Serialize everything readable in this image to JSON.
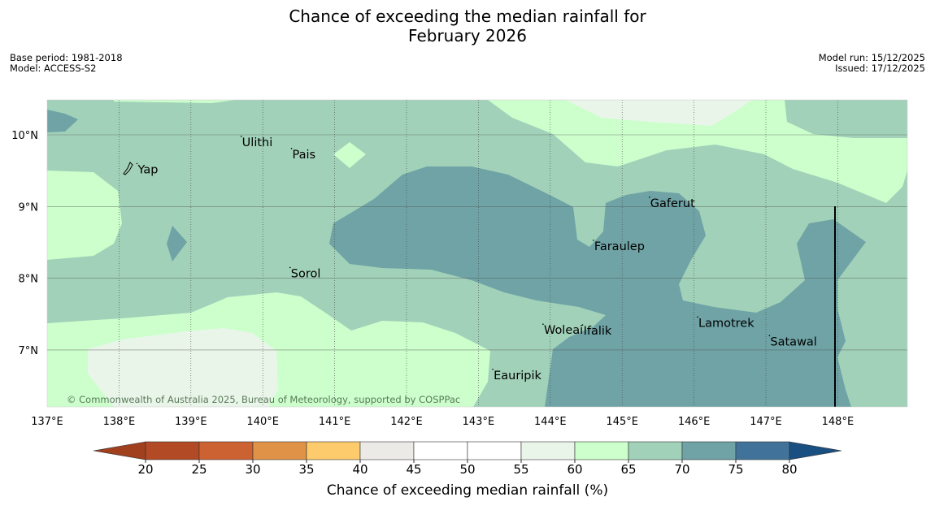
{
  "title": {
    "line1": "Chance of exceeding the median rainfall for",
    "line2": "February 2026"
  },
  "meta": {
    "base_period": "Base period: 1981-2018",
    "model": "Model: ACCESS-S2",
    "model_run": "Model run: 15/12/2025",
    "issued": "Issued: 17/12/2025"
  },
  "map": {
    "lon_ticks": [
      "137°E",
      "138°E",
      "139°E",
      "140°E",
      "141°E",
      "142°E",
      "143°E",
      "144°E",
      "145°E",
      "146°E",
      "147°E",
      "148°E"
    ],
    "lat_ticks": [
      "10°N",
      "9°N",
      "8°N",
      "7°N"
    ],
    "places": [
      {
        "name": "Yap",
        "lon": 138.25,
        "lat": 9.52
      },
      {
        "name": "Ulithi",
        "lon": 139.7,
        "lat": 9.9
      },
      {
        "name": "Pais",
        "lon": 140.4,
        "lat": 9.73
      },
      {
        "name": "Gaferut",
        "lon": 145.38,
        "lat": 9.05
      },
      {
        "name": "Faraulep",
        "lon": 144.6,
        "lat": 8.45
      },
      {
        "name": "Sorol",
        "lon": 140.38,
        "lat": 8.07
      },
      {
        "name": "Lamotrek",
        "lon": 146.05,
        "lat": 7.38
      },
      {
        "name": "Woleai",
        "lon": 143.9,
        "lat": 7.28
      },
      {
        "name": "Ifalik",
        "lon": 144.45,
        "lat": 7.27
      },
      {
        "name": "Satawal",
        "lon": 147.05,
        "lat": 7.12
      },
      {
        "name": "Eauripik",
        "lon": 143.2,
        "lat": 6.65
      }
    ],
    "copyright": "© Commonwealth of Australia 2025, Bureau of Meteorology, supported by COSPPac"
  },
  "colorbar": {
    "ticks": [
      "20",
      "25",
      "30",
      "35",
      "40",
      "45",
      "50",
      "55",
      "60",
      "65",
      "70",
      "75",
      "80"
    ],
    "colors": [
      "#a0401f",
      "#b24a25",
      "#cc6131",
      "#e09346",
      "#fdcb6b",
      "#ebeae6",
      "#ffffff",
      "#ffffff",
      "#eaf5ea",
      "#ccffcc",
      "#a1d1b8",
      "#6fa3a6",
      "#41739a",
      "#1a4f82"
    ],
    "label": "Chance of exceeding median rainfall (%)"
  }
}
